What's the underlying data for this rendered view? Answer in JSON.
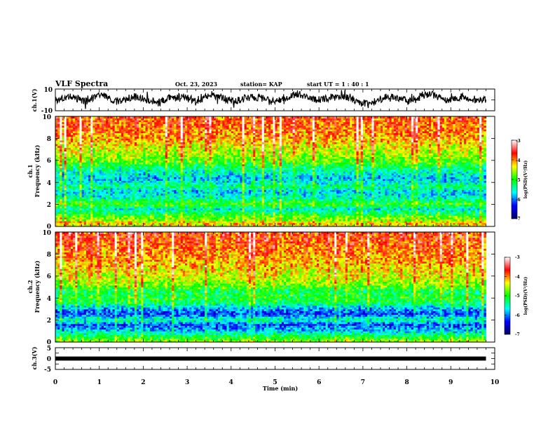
{
  "header": {
    "title": "VLF Spectra",
    "date": "Oct. 23, 2023",
    "station": "station= KAP",
    "start_ut": "start  UT =  1 : 40 : 1"
  },
  "chart_data": [
    {
      "id": "ch1-waveform",
      "type": "line",
      "ylabel": "ch.1(V)",
      "ylim": [
        -10,
        10
      ],
      "yticks": [
        "10",
        "-10"
      ],
      "xlim": [
        0,
        10
      ],
      "x_end": 9.8,
      "color": "#000000",
      "shape": [
        0.0,
        1.5,
        3.0,
        1.0,
        -1.5,
        2.5,
        4.5,
        1.0,
        -2.0,
        0.5,
        3.0,
        1.5,
        -1.0,
        -3.5,
        0.5,
        2.0,
        3.5,
        1.0,
        -0.5,
        2.0,
        5.0,
        2.5,
        0.0,
        -1.5,
        1.0,
        3.0,
        2.0,
        0.5,
        -2.0,
        1.5,
        3.5,
        5.5,
        3.0,
        1.0,
        -0.5,
        2.0,
        4.0,
        2.5,
        0.5,
        -2.5,
        -4.0,
        -1.0,
        2.0,
        3.0,
        1.0,
        -1.5,
        2.5,
        4.5,
        6.0,
        2.0,
        -1.0,
        1.0,
        3.0,
        1.5,
        -0.5,
        0.5
      ]
    },
    {
      "id": "ch1-spectrogram",
      "type": "heatmap",
      "ylabel": "Frequency (kHz)",
      "channel_label": "ch.1",
      "ylim": [
        0,
        10
      ],
      "yticks": [
        "10",
        "8",
        "6",
        "4",
        "2",
        "0"
      ],
      "xlim": [
        0,
        10
      ],
      "x_end": 9.8,
      "colorbar": {
        "label": "log(PSD)(V²/Hz)",
        "range": [
          -7,
          -3
        ],
        "ticks": [
          "-3",
          "-4",
          "-5",
          "-6",
          "-7"
        ],
        "colors": [
          "#000060",
          "#0000ff",
          "#00ffff",
          "#00ff00",
          "#ffff00",
          "#ff0000",
          "#ffffff"
        ]
      },
      "level_profile": [
        [
          0,
          -4.6
        ],
        [
          0.3,
          -4.1
        ],
        [
          0.6,
          -4.7
        ],
        [
          0.9,
          -4.8
        ],
        [
          1.2,
          -5.2
        ],
        [
          1.6,
          -5.6
        ],
        [
          2.0,
          -4.9
        ],
        [
          2.6,
          -5.5
        ],
        [
          3.2,
          -5.8
        ],
        [
          3.6,
          -5.3
        ],
        [
          4.0,
          -5.6
        ],
        [
          4.4,
          -5.8
        ],
        [
          4.8,
          -5.6
        ],
        [
          5.2,
          -5.4
        ],
        [
          5.8,
          -4.9
        ],
        [
          6.5,
          -4.6
        ],
        [
          7.2,
          -4.4
        ],
        [
          8.0,
          -4.1
        ],
        [
          9.0,
          -3.9
        ],
        [
          10.0,
          -3.8
        ]
      ],
      "seed": 7
    },
    {
      "id": "ch2-spectrogram",
      "type": "heatmap",
      "ylabel": "Frequency (kHz)",
      "channel_label": "ch.2",
      "ylim": [
        0,
        10
      ],
      "yticks": [
        "10",
        "8",
        "6",
        "4",
        "2",
        "0"
      ],
      "xlim": [
        0,
        10
      ],
      "x_end": 9.8,
      "colorbar": {
        "label": "log(PSD)(V²/Hz)",
        "range": [
          -7,
          -3
        ],
        "ticks": [
          "-3",
          "-4",
          "-5",
          "-6",
          "-7"
        ],
        "colors": [
          "#000060",
          "#0000ff",
          "#00ffff",
          "#00ff00",
          "#ffff00",
          "#ff0000",
          "#ffffff"
        ]
      },
      "level_profile": [
        [
          0,
          -4.5
        ],
        [
          0.4,
          -5.0
        ],
        [
          0.8,
          -5.5
        ],
        [
          1.2,
          -5.9
        ],
        [
          1.6,
          -6.2
        ],
        [
          2.0,
          -5.4
        ],
        [
          2.6,
          -6.2
        ],
        [
          3.0,
          -5.9
        ],
        [
          3.6,
          -5.2
        ],
        [
          4.0,
          -5.0
        ],
        [
          4.6,
          -5.2
        ],
        [
          5.2,
          -4.7
        ],
        [
          6.0,
          -4.4
        ],
        [
          7.0,
          -4.2
        ],
        [
          8.0,
          -4.0
        ],
        [
          9.0,
          -3.8
        ],
        [
          10.0,
          -3.7
        ]
      ],
      "seed": 19
    },
    {
      "id": "ch3-waveform",
      "type": "line",
      "ylabel": "ch.3(V)",
      "ylim": [
        -5,
        5
      ],
      "yticks": [
        "5",
        "0",
        "-5"
      ],
      "xlim": [
        0,
        10
      ],
      "x_end": 9.8,
      "center": 0,
      "band_halfwidth": 0.45,
      "color": "#000000",
      "xlabel": "Time (min)",
      "xticks": [
        "0",
        "1",
        "2",
        "3",
        "4",
        "5",
        "6",
        "7",
        "8",
        "9",
        "10"
      ]
    }
  ]
}
